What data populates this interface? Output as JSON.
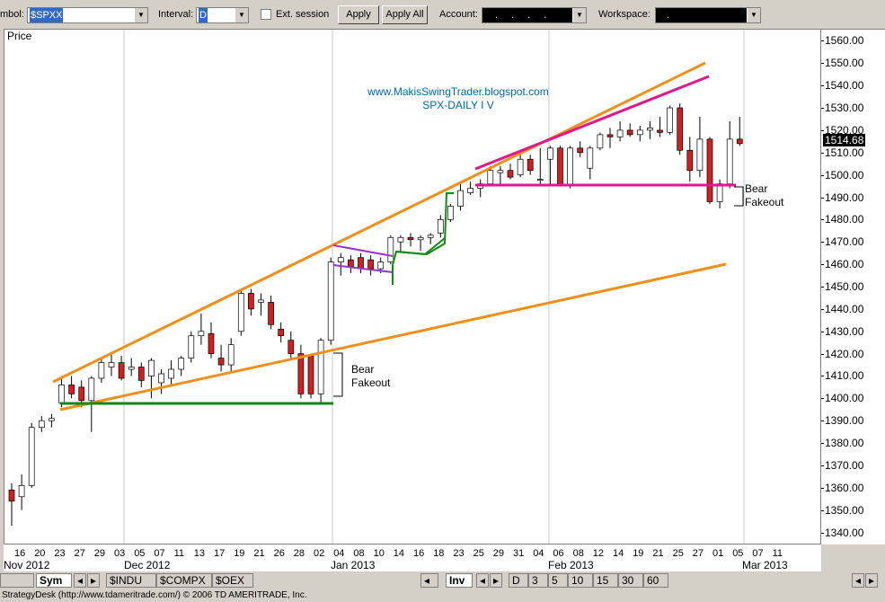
{
  "toolbar": {
    "symbol_label": "mbol:",
    "symbol_value": "$SPXX",
    "interval_label": "Interval:",
    "interval_value": "D",
    "ext_session_label": "Ext. session",
    "apply_label": "Apply",
    "apply_all_label": "Apply All",
    "account_label": "Account:",
    "account_value": ". . . .",
    "workspace_label": "Workspace:",
    "workspace_value": "."
  },
  "chart": {
    "price_label": "Price",
    "watermark_url": "www.MakisSwingTrader.blogspot.com",
    "watermark_title": "SPX-DAILY I V",
    "annotations": [
      "Bear",
      "Fakeout"
    ],
    "current_price": "1514.68"
  },
  "price_ticks": [
    "1560.00",
    "1550.00",
    "1540.00",
    "1530.00",
    "1520.00",
    "1510.00",
    "1500.00",
    "1490.00",
    "1480.00",
    "1470.00",
    "1460.00",
    "1450.00",
    "1440.00",
    "1430.00",
    "1420.00",
    "1410.00",
    "1400.00",
    "1390.00",
    "1380.00",
    "1370.00",
    "1360.00",
    "1350.00",
    "1340.00"
  ],
  "date_ticks": [
    "16",
    "20",
    "23",
    "27",
    "29",
    "03",
    "05",
    "07",
    "11",
    "13",
    "17",
    "19",
    "21",
    "26",
    "28",
    "02",
    "04",
    "08",
    "10",
    "14",
    "16",
    "18",
    "23",
    "25",
    "29",
    "31",
    "04",
    "06",
    "08",
    "12",
    "14",
    "19",
    "21",
    "25",
    "27",
    "01",
    "05",
    "07",
    "11"
  ],
  "month_labels": [
    "Nov 2012",
    "Dec 2012",
    "Jan 2013",
    "Feb 2013",
    "Mar 2013"
  ],
  "tabs": {
    "sym": "Sym",
    "symbols": [
      "$INDU",
      "$COMPX",
      "$OEX"
    ],
    "inv": "Inv",
    "intervals": [
      "D",
      "3",
      "5",
      "10",
      "15",
      "30",
      "60"
    ]
  },
  "status_text": "StrategyDesk (http://www.tdameritrade.com/) © 2006 TD AMERITRADE, Inc.",
  "chart_data": {
    "type": "candlestick",
    "title": "SPX-DAILY I V",
    "ylabel": "Price",
    "ylim": [
      1335,
      1565
    ],
    "colors": {
      "up": "#ffffff",
      "down": "#cc2222",
      "wedge": "#f0901a",
      "trend": "#e0188c",
      "support": "#118811",
      "flag": "#9933cc"
    },
    "candles": [
      {
        "o": 1359,
        "h": 1362,
        "l": 1343,
        "c": 1354
      },
      {
        "o": 1356,
        "h": 1366,
        "l": 1350,
        "c": 1361
      },
      {
        "o": 1361,
        "h": 1389,
        "l": 1360,
        "c": 1387
      },
      {
        "o": 1387,
        "h": 1392,
        "l": 1385,
        "c": 1390
      },
      {
        "o": 1390,
        "h": 1393,
        "l": 1387,
        "c": 1391
      },
      {
        "o": 1398,
        "h": 1410,
        "l": 1396,
        "c": 1406
      },
      {
        "o": 1406,
        "h": 1410,
        "l": 1400,
        "c": 1402
      },
      {
        "o": 1405,
        "h": 1408,
        "l": 1396,
        "c": 1399
      },
      {
        "o": 1399,
        "h": 1410,
        "l": 1385,
        "c": 1409
      },
      {
        "o": 1409,
        "h": 1418,
        "l": 1407,
        "c": 1416
      },
      {
        "o": 1414,
        "h": 1420,
        "l": 1410,
        "c": 1416
      },
      {
        "o": 1416,
        "h": 1419,
        "l": 1408,
        "c": 1409
      },
      {
        "o": 1413,
        "h": 1418,
        "l": 1410,
        "c": 1414
      },
      {
        "o": 1414,
        "h": 1416,
        "l": 1405,
        "c": 1408
      },
      {
        "o": 1410,
        "h": 1418,
        "l": 1400,
        "c": 1417
      },
      {
        "o": 1407,
        "h": 1413,
        "l": 1402,
        "c": 1411
      },
      {
        "o": 1409,
        "h": 1417,
        "l": 1406,
        "c": 1413
      },
      {
        "o": 1413,
        "h": 1419,
        "l": 1410,
        "c": 1418
      },
      {
        "o": 1418,
        "h": 1430,
        "l": 1416,
        "c": 1428
      },
      {
        "o": 1428,
        "h": 1438,
        "l": 1424,
        "c": 1430
      },
      {
        "o": 1429,
        "h": 1434,
        "l": 1418,
        "c": 1420
      },
      {
        "o": 1418,
        "h": 1424,
        "l": 1412,
        "c": 1415
      },
      {
        "o": 1415,
        "h": 1427,
        "l": 1412,
        "c": 1424
      },
      {
        "o": 1430,
        "h": 1448,
        "l": 1428,
        "c": 1447
      },
      {
        "o": 1447,
        "h": 1449,
        "l": 1437,
        "c": 1440
      },
      {
        "o": 1443,
        "h": 1447,
        "l": 1437,
        "c": 1444
      },
      {
        "o": 1443,
        "h": 1446,
        "l": 1431,
        "c": 1433
      },
      {
        "o": 1431,
        "h": 1434,
        "l": 1425,
        "c": 1428
      },
      {
        "o": 1426,
        "h": 1430,
        "l": 1418,
        "c": 1420
      },
      {
        "o": 1420,
        "h": 1424,
        "l": 1400,
        "c": 1402
      },
      {
        "o": 1419,
        "h": 1420,
        "l": 1400,
        "c": 1402
      },
      {
        "o": 1402,
        "h": 1427,
        "l": 1398,
        "c": 1426
      },
      {
        "o": 1426,
        "h": 1463,
        "l": 1424,
        "c": 1461
      },
      {
        "o": 1461,
        "h": 1465,
        "l": 1455,
        "c": 1463
      },
      {
        "o": 1462,
        "h": 1464,
        "l": 1456,
        "c": 1459
      },
      {
        "o": 1463,
        "h": 1465,
        "l": 1456,
        "c": 1458
      },
      {
        "o": 1462,
        "h": 1464,
        "l": 1455,
        "c": 1458
      },
      {
        "o": 1458,
        "h": 1463,
        "l": 1456,
        "c": 1461
      },
      {
        "o": 1461,
        "h": 1473,
        "l": 1460,
        "c": 1472
      },
      {
        "o": 1470,
        "h": 1473,
        "l": 1465,
        "c": 1472
      },
      {
        "o": 1472,
        "h": 1474,
        "l": 1468,
        "c": 1471
      },
      {
        "o": 1471,
        "h": 1473,
        "l": 1466,
        "c": 1472
      },
      {
        "o": 1472,
        "h": 1474,
        "l": 1469,
        "c": 1473
      },
      {
        "o": 1474,
        "h": 1482,
        "l": 1472,
        "c": 1480
      },
      {
        "o": 1480,
        "h": 1487,
        "l": 1479,
        "c": 1486
      },
      {
        "o": 1486,
        "h": 1496,
        "l": 1484,
        "c": 1493
      },
      {
        "o": 1492,
        "h": 1497,
        "l": 1491,
        "c": 1494
      },
      {
        "o": 1494,
        "h": 1498,
        "l": 1490,
        "c": 1496
      },
      {
        "o": 1496,
        "h": 1504,
        "l": 1495,
        "c": 1502
      },
      {
        "o": 1501,
        "h": 1504,
        "l": 1496,
        "c": 1502
      },
      {
        "o": 1502,
        "h": 1505,
        "l": 1498,
        "c": 1499
      },
      {
        "o": 1500,
        "h": 1509,
        "l": 1499,
        "c": 1507
      },
      {
        "o": 1507,
        "h": 1509,
        "l": 1500,
        "c": 1502
      },
      {
        "o": 1498,
        "h": 1512,
        "l": 1496,
        "c": 1498
      },
      {
        "o": 1507,
        "h": 1513,
        "l": 1496,
        "c": 1512
      },
      {
        "o": 1512,
        "h": 1513,
        "l": 1495,
        "c": 1495
      },
      {
        "o": 1495,
        "h": 1513,
        "l": 1494,
        "c": 1512
      },
      {
        "o": 1512,
        "h": 1515,
        "l": 1508,
        "c": 1510
      },
      {
        "o": 1503,
        "h": 1513,
        "l": 1498,
        "c": 1512
      },
      {
        "o": 1512,
        "h": 1519,
        "l": 1511,
        "c": 1518
      },
      {
        "o": 1518,
        "h": 1521,
        "l": 1512,
        "c": 1517
      },
      {
        "o": 1517,
        "h": 1524,
        "l": 1515,
        "c": 1520
      },
      {
        "o": 1520,
        "h": 1523,
        "l": 1517,
        "c": 1518
      },
      {
        "o": 1518,
        "h": 1522,
        "l": 1515,
        "c": 1520
      },
      {
        "o": 1520,
        "h": 1524,
        "l": 1516,
        "c": 1521
      },
      {
        "o": 1520,
        "h": 1526,
        "l": 1517,
        "c": 1519
      },
      {
        "o": 1519,
        "h": 1531,
        "l": 1518,
        "c": 1530
      },
      {
        "o": 1530,
        "h": 1532,
        "l": 1509,
        "c": 1511
      },
      {
        "o": 1511,
        "h": 1517,
        "l": 1497,
        "c": 1502
      },
      {
        "o": 1502,
        "h": 1526,
        "l": 1499,
        "c": 1516
      },
      {
        "o": 1516,
        "h": 1517,
        "l": 1487,
        "c": 1488
      },
      {
        "o": 1488,
        "h": 1498,
        "l": 1485,
        "c": 1496
      },
      {
        "o": 1496,
        "h": 1524,
        "l": 1494,
        "c": 1516
      },
      {
        "o": 1516,
        "h": 1526,
        "l": 1513,
        "c": 1514
      }
    ]
  }
}
